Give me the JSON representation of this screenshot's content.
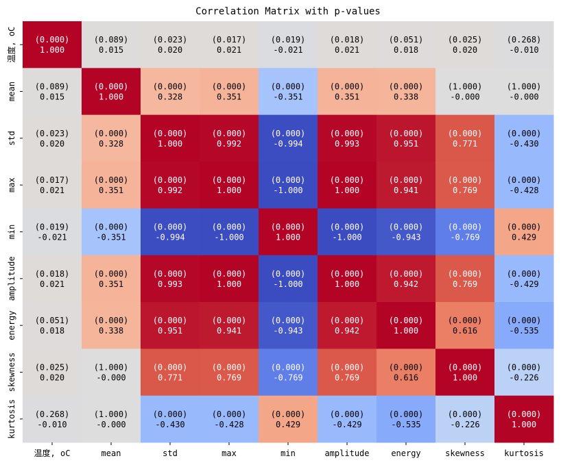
{
  "chart_data": {
    "type": "heatmap",
    "title": "Correlation Matrix with p-values",
    "variables": [
      "温度, oC",
      "mean",
      "std",
      "max",
      "min",
      "amplitude",
      "energy",
      "skewness",
      "kurtosis"
    ],
    "correlation": [
      [
        "1.000",
        "0.015",
        "0.020",
        "0.021",
        "-0.021",
        "0.021",
        "0.018",
        "0.020",
        "-0.010"
      ],
      [
        "0.015",
        "1.000",
        "0.328",
        "0.351",
        "-0.351",
        "0.351",
        "0.338",
        "-0.000",
        "-0.000"
      ],
      [
        "0.020",
        "0.328",
        "1.000",
        "0.992",
        "-0.994",
        "0.993",
        "0.951",
        "0.771",
        "-0.430"
      ],
      [
        "0.021",
        "0.351",
        "0.992",
        "1.000",
        "-1.000",
        "1.000",
        "0.941",
        "0.769",
        "-0.428"
      ],
      [
        "-0.021",
        "-0.351",
        "-0.994",
        "-1.000",
        "1.000",
        "-1.000",
        "-0.943",
        "-0.769",
        "0.429"
      ],
      [
        "0.021",
        "0.351",
        "0.993",
        "1.000",
        "-1.000",
        "1.000",
        "0.942",
        "0.769",
        "-0.429"
      ],
      [
        "0.018",
        "0.338",
        "0.951",
        "0.941",
        "-0.943",
        "0.942",
        "1.000",
        "0.616",
        "-0.535"
      ],
      [
        "0.020",
        "-0.000",
        "0.771",
        "0.769",
        "-0.769",
        "0.769",
        "0.616",
        "1.000",
        "-0.226"
      ],
      [
        "-0.010",
        "-0.000",
        "-0.430",
        "-0.428",
        "0.429",
        "-0.429",
        "-0.535",
        "-0.226",
        "1.000"
      ]
    ],
    "p_values": [
      [
        "0.000",
        "0.089",
        "0.023",
        "0.017",
        "0.019",
        "0.018",
        "0.051",
        "0.025",
        "0.268"
      ],
      [
        "0.089",
        "0.000",
        "0.000",
        "0.000",
        "0.000",
        "0.000",
        "0.000",
        "1.000",
        "1.000"
      ],
      [
        "0.023",
        "0.000",
        "0.000",
        "0.000",
        "0.000",
        "0.000",
        "0.000",
        "0.000",
        "0.000"
      ],
      [
        "0.017",
        "0.000",
        "0.000",
        "0.000",
        "0.000",
        "0.000",
        "0.000",
        "0.000",
        "0.000"
      ],
      [
        "0.019",
        "0.000",
        "0.000",
        "0.000",
        "0.000",
        "0.000",
        "0.000",
        "0.000",
        "0.000"
      ],
      [
        "0.018",
        "0.000",
        "0.000",
        "0.000",
        "0.000",
        "0.000",
        "0.000",
        "0.000",
        "0.000"
      ],
      [
        "0.051",
        "0.000",
        "0.000",
        "0.000",
        "0.000",
        "0.000",
        "0.000",
        "0.000",
        "0.000"
      ],
      [
        "0.025",
        "1.000",
        "0.000",
        "0.000",
        "0.000",
        "0.000",
        "0.000",
        "0.000",
        "0.000"
      ],
      [
        "0.268",
        "1.000",
        "0.000",
        "0.000",
        "0.000",
        "0.000",
        "0.000",
        "0.000",
        "0.000"
      ]
    ],
    "colormap": "coolwarm",
    "vmin": -1,
    "vmax": 1,
    "colorbar": false
  }
}
